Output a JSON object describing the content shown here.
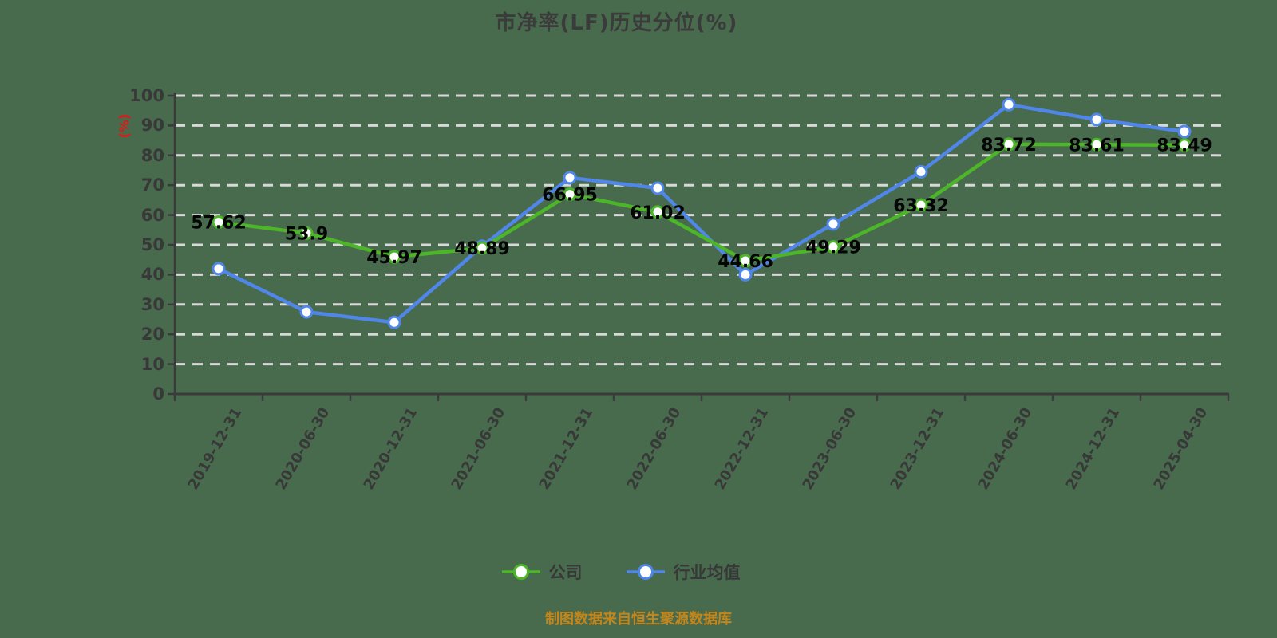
{
  "page": {
    "background_color": "#486b4e",
    "grid_color": "#d8d8d8",
    "axis_color": "#3a3a3a",
    "tick_text_color": "#383838",
    "title_color": "#3b3b3b",
    "y_unit_color": "#ee1111",
    "data_label_color": "#050505",
    "marker_fill": "#ffffff",
    "source_color": "#c2861c",
    "legend_text_color": "#383838"
  },
  "chart_data": {
    "type": "line",
    "title": "市净率(LF)历史分位(%)",
    "ylabel": "(%)",
    "xlabel": "",
    "source_note": "制图数据来自恒生聚源数据库",
    "ylim": [
      0,
      100
    ],
    "y_ticks": [
      0,
      10,
      20,
      30,
      40,
      50,
      60,
      70,
      80,
      90,
      100
    ],
    "grid": "horizontal-dashed-white",
    "legend_position": "bottom",
    "categories": [
      "2019-12-31",
      "2020-06-30",
      "2020-12-31",
      "2021-06-30",
      "2021-12-31",
      "2022-06-30",
      "2022-12-31",
      "2023-06-30",
      "2023-12-31",
      "2024-06-30",
      "2024-12-31",
      "2025-04-30"
    ],
    "series": [
      {
        "name": "行业均值",
        "color": "#4f86e8",
        "show_point_labels": false,
        "values": [
          42,
          27.5,
          24,
          49.5,
          72.5,
          69,
          40,
          57,
          74.5,
          97,
          92,
          88
        ]
      },
      {
        "name": "公司",
        "color": "#4cb628",
        "show_point_labels": true,
        "values": [
          57.62,
          53.9,
          45.97,
          48.89,
          66.95,
          61.02,
          44.66,
          49.29,
          63.32,
          83.72,
          83.61,
          83.49
        ]
      }
    ],
    "legend_order": [
      "公司",
      "行业均值"
    ]
  }
}
